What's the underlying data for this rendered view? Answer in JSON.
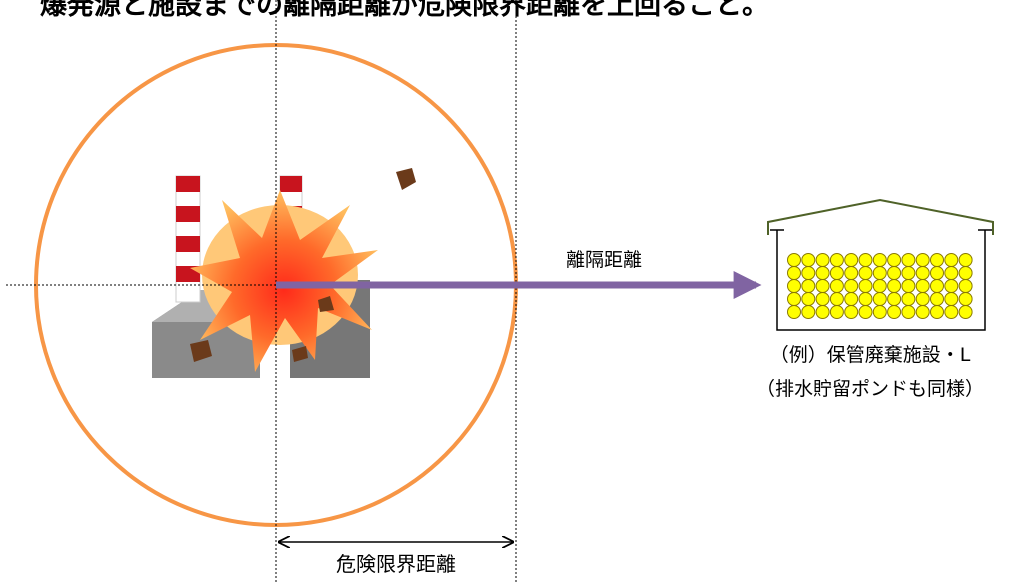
{
  "title": "爆発源と施設までの離隔距離が危険限界距離を上回ること。",
  "separation_label": "離隔距離",
  "danger_distance_label": "危険限界距離",
  "facility": {
    "lines": [
      "（例）保管廃棄施設・L",
      "（排水貯留ポンドも同様）"
    ]
  }
}
